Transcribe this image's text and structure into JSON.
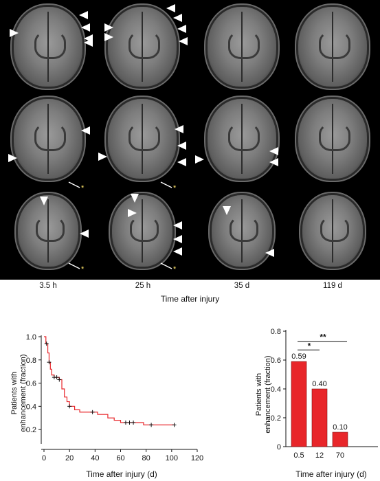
{
  "figure": {
    "mri": {
      "columns": [
        "3.5 h",
        "25 h",
        "35 d",
        "119 d"
      ],
      "axis_title": "Time after injury",
      "star_symbol": "*"
    }
  },
  "chart_data": [
    {
      "type": "line",
      "xlabel": "Time after injury (d)",
      "ylabel": "Patients with enhancement (fraction)",
      "xlim": [
        0,
        120
      ],
      "ylim": [
        0.1,
        1.0
      ],
      "xticks": [
        0,
        20,
        40,
        60,
        80,
        100,
        120
      ],
      "yticks": [
        0.2,
        0.4,
        0.6,
        0.8,
        1.0
      ],
      "ytick_labels": [
        "0.2",
        "0.4",
        "0.6",
        "0.8",
        "1.0"
      ],
      "series": [
        {
          "color": "#e8262a",
          "steps": [
            [
              0,
              1.0
            ],
            [
              1.5,
              0.94
            ],
            [
              3,
              0.86
            ],
            [
              4,
              0.78
            ],
            [
              5,
              0.72
            ],
            [
              6,
              0.67
            ],
            [
              8,
              0.65
            ],
            [
              10,
              0.65
            ],
            [
              12,
              0.63
            ],
            [
              14,
              0.55
            ],
            [
              16,
              0.48
            ],
            [
              18,
              0.44
            ],
            [
              20,
              0.4
            ],
            [
              24,
              0.37
            ],
            [
              28,
              0.35
            ],
            [
              35,
              0.35
            ],
            [
              42,
              0.33
            ],
            [
              50,
              0.3
            ],
            [
              55,
              0.28
            ],
            [
              60,
              0.26
            ],
            [
              70,
              0.26
            ],
            [
              78,
              0.24
            ],
            [
              102,
              0.24
            ]
          ],
          "censored": [
            2,
            4,
            8,
            10,
            12,
            20,
            38,
            64,
            67,
            70,
            84,
            102
          ]
        }
      ],
      "censor_y": [
        0.94,
        0.78,
        0.65,
        0.65,
        0.63,
        0.4,
        0.35,
        0.26,
        0.26,
        0.26,
        0.24,
        0.24
      ]
    },
    {
      "type": "bar",
      "xlabel": "Time after injury (d)",
      "ylabel": "Patients with enhancement (fraction)",
      "categories": [
        "0.5",
        "12",
        "70"
      ],
      "values": [
        0.59,
        0.4,
        0.1
      ],
      "value_labels": [
        "0.59",
        "0.40",
        "0.10"
      ],
      "ylim": [
        0,
        0.8
      ],
      "yticks": [
        "0",
        "0.2",
        "0.4",
        "0.6",
        "0.8"
      ],
      "bar_color": "#e8262a",
      "significance": [
        {
          "from": "0.5",
          "to": "12",
          "label": "*"
        },
        {
          "from": "0.5",
          "to": "70",
          "label": "**"
        }
      ]
    }
  ]
}
